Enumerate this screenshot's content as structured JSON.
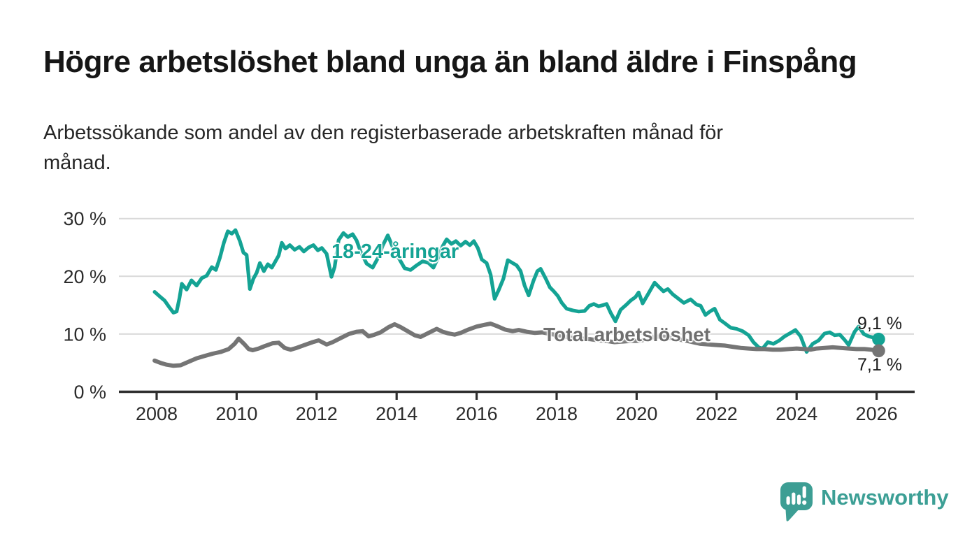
{
  "header": {
    "title": "Högre arbetslöshet bland unga än bland äldre i Finspång",
    "subtitle_line1": "Arbetssökande som andel av den registerbaserade arbetskraften månad för",
    "subtitle_line2": "månad."
  },
  "chart_data": {
    "type": "line",
    "title": "Högre arbetslöshet bland unga än bland äldre i Finspång",
    "xlabel": "",
    "ylabel": "",
    "x_axis": {
      "ticks": [
        2008,
        2010,
        2012,
        2014,
        2016,
        2018,
        2020,
        2022,
        2024,
        2026
      ],
      "tick_labels": [
        "2008",
        "2010",
        "2012",
        "2014",
        "2016",
        "2018",
        "2020",
        "2022",
        "2024",
        "2026"
      ],
      "range": [
        2007.1,
        2026.9
      ]
    },
    "y_axis": {
      "unit": "%",
      "ticks": [
        0,
        10,
        20,
        30
      ],
      "tick_labels": [
        "0 %",
        "10 %",
        "20 %",
        "30 %"
      ],
      "range": [
        0,
        30.5
      ],
      "grid": true
    },
    "style": {
      "grid_color": "#d9d9d9",
      "axis_color": "#2e2e2e",
      "tick_text_color": "#2b2b2b",
      "background": "#ffffff"
    },
    "series": [
      {
        "name": "18-24-åringar",
        "color": "#14a394",
        "stroke_width": 5.2,
        "end_value": 9.1,
        "end_label": "9,1 %",
        "points": [
          [
            2007.95,
            17.3
          ],
          [
            2008.08,
            16.5
          ],
          [
            2008.2,
            15.8
          ],
          [
            2008.3,
            14.8
          ],
          [
            2008.42,
            13.7
          ],
          [
            2008.5,
            13.9
          ],
          [
            2008.57,
            16.2
          ],
          [
            2008.63,
            18.7
          ],
          [
            2008.75,
            17.7
          ],
          [
            2008.87,
            19.3
          ],
          [
            2009.0,
            18.4
          ],
          [
            2009.13,
            19.7
          ],
          [
            2009.25,
            20.1
          ],
          [
            2009.38,
            21.6
          ],
          [
            2009.48,
            21.1
          ],
          [
            2009.58,
            23.2
          ],
          [
            2009.68,
            25.8
          ],
          [
            2009.78,
            27.8
          ],
          [
            2009.88,
            27.4
          ],
          [
            2009.97,
            28.0
          ],
          [
            2010.08,
            26.1
          ],
          [
            2010.17,
            24.1
          ],
          [
            2010.25,
            23.7
          ],
          [
            2010.33,
            17.8
          ],
          [
            2010.42,
            19.6
          ],
          [
            2010.5,
            20.6
          ],
          [
            2010.58,
            22.3
          ],
          [
            2010.68,
            20.9
          ],
          [
            2010.78,
            22.1
          ],
          [
            2010.88,
            21.5
          ],
          [
            2010.97,
            22.6
          ],
          [
            2011.05,
            23.6
          ],
          [
            2011.13,
            25.8
          ],
          [
            2011.22,
            24.8
          ],
          [
            2011.33,
            25.4
          ],
          [
            2011.45,
            24.6
          ],
          [
            2011.57,
            25.1
          ],
          [
            2011.68,
            24.3
          ],
          [
            2011.8,
            25.0
          ],
          [
            2011.92,
            25.4
          ],
          [
            2012.03,
            24.5
          ],
          [
            2012.13,
            24.9
          ],
          [
            2012.25,
            23.9
          ],
          [
            2012.37,
            19.9
          ],
          [
            2012.45,
            21.6
          ],
          [
            2012.55,
            26.3
          ],
          [
            2012.67,
            27.5
          ],
          [
            2012.78,
            26.8
          ],
          [
            2012.9,
            27.3
          ],
          [
            2013.0,
            26.2
          ],
          [
            2013.1,
            24.3
          ],
          [
            2013.25,
            22.2
          ],
          [
            2013.4,
            21.5
          ],
          [
            2013.55,
            23.4
          ],
          [
            2013.65,
            25.3
          ],
          [
            2013.78,
            27.1
          ],
          [
            2013.9,
            25.1
          ],
          [
            2014.05,
            23.2
          ],
          [
            2014.2,
            21.4
          ],
          [
            2014.35,
            21.1
          ],
          [
            2014.5,
            21.9
          ],
          [
            2014.65,
            22.6
          ],
          [
            2014.8,
            22.3
          ],
          [
            2014.92,
            21.5
          ],
          [
            2015.05,
            23.4
          ],
          [
            2015.15,
            25.2
          ],
          [
            2015.25,
            26.4
          ],
          [
            2015.37,
            25.6
          ],
          [
            2015.48,
            26.1
          ],
          [
            2015.6,
            25.3
          ],
          [
            2015.72,
            26.0
          ],
          [
            2015.83,
            25.4
          ],
          [
            2015.93,
            26.1
          ],
          [
            2016.03,
            24.9
          ],
          [
            2016.13,
            22.9
          ],
          [
            2016.25,
            22.3
          ],
          [
            2016.35,
            20.3
          ],
          [
            2016.45,
            16.1
          ],
          [
            2016.55,
            17.6
          ],
          [
            2016.67,
            19.6
          ],
          [
            2016.78,
            22.8
          ],
          [
            2016.9,
            22.3
          ],
          [
            2017.0,
            21.9
          ],
          [
            2017.1,
            20.9
          ],
          [
            2017.2,
            18.4
          ],
          [
            2017.3,
            16.7
          ],
          [
            2017.42,
            19.2
          ],
          [
            2017.52,
            20.9
          ],
          [
            2017.6,
            21.3
          ],
          [
            2017.72,
            19.7
          ],
          [
            2017.83,
            18.1
          ],
          [
            2017.93,
            17.4
          ],
          [
            2018.03,
            16.6
          ],
          [
            2018.13,
            15.4
          ],
          [
            2018.25,
            14.4
          ],
          [
            2018.4,
            14.1
          ],
          [
            2018.55,
            13.9
          ],
          [
            2018.7,
            14.0
          ],
          [
            2018.82,
            14.9
          ],
          [
            2018.93,
            15.2
          ],
          [
            2019.05,
            14.8
          ],
          [
            2019.15,
            15.0
          ],
          [
            2019.25,
            15.2
          ],
          [
            2019.35,
            13.7
          ],
          [
            2019.47,
            12.2
          ],
          [
            2019.6,
            14.2
          ],
          [
            2019.73,
            15.0
          ],
          [
            2019.85,
            15.8
          ],
          [
            2019.97,
            16.4
          ],
          [
            2020.05,
            17.2
          ],
          [
            2020.15,
            15.3
          ],
          [
            2020.3,
            17.1
          ],
          [
            2020.45,
            18.9
          ],
          [
            2020.55,
            18.2
          ],
          [
            2020.67,
            17.4
          ],
          [
            2020.78,
            17.8
          ],
          [
            2020.9,
            16.9
          ],
          [
            2021.03,
            16.2
          ],
          [
            2021.18,
            15.4
          ],
          [
            2021.35,
            16.0
          ],
          [
            2021.5,
            15.1
          ],
          [
            2021.6,
            14.9
          ],
          [
            2021.72,
            13.3
          ],
          [
            2021.83,
            13.9
          ],
          [
            2021.95,
            14.4
          ],
          [
            2022.08,
            12.5
          ],
          [
            2022.2,
            11.9
          ],
          [
            2022.35,
            11.1
          ],
          [
            2022.5,
            10.9
          ],
          [
            2022.65,
            10.5
          ],
          [
            2022.8,
            9.8
          ],
          [
            2022.92,
            8.6
          ],
          [
            2023.05,
            7.7
          ],
          [
            2023.15,
            7.5
          ],
          [
            2023.28,
            8.6
          ],
          [
            2023.42,
            8.3
          ],
          [
            2023.57,
            8.9
          ],
          [
            2023.7,
            9.6
          ],
          [
            2023.85,
            10.2
          ],
          [
            2023.97,
            10.7
          ],
          [
            2024.1,
            9.6
          ],
          [
            2024.25,
            6.9
          ],
          [
            2024.4,
            8.3
          ],
          [
            2024.55,
            8.9
          ],
          [
            2024.7,
            10.1
          ],
          [
            2024.83,
            10.3
          ],
          [
            2024.95,
            9.8
          ],
          [
            2025.08,
            9.9
          ],
          [
            2025.2,
            9.0
          ],
          [
            2025.3,
            8.1
          ],
          [
            2025.45,
            10.4
          ],
          [
            2025.55,
            11.3
          ],
          [
            2025.68,
            10.0
          ],
          [
            2025.8,
            9.6
          ],
          [
            2025.92,
            9.4
          ],
          [
            2026.05,
            9.1
          ]
        ]
      },
      {
        "name": "Total arbetslöshet",
        "color": "#757575",
        "stroke_width": 6,
        "end_value": 7.1,
        "end_label": "7,1 %",
        "points": [
          [
            2007.95,
            5.4
          ],
          [
            2008.1,
            5.0
          ],
          [
            2008.25,
            4.7
          ],
          [
            2008.42,
            4.5
          ],
          [
            2008.6,
            4.6
          ],
          [
            2008.8,
            5.2
          ],
          [
            2009.0,
            5.8
          ],
          [
            2009.2,
            6.2
          ],
          [
            2009.4,
            6.6
          ],
          [
            2009.6,
            6.9
          ],
          [
            2009.8,
            7.4
          ],
          [
            2009.95,
            8.3
          ],
          [
            2010.05,
            9.2
          ],
          [
            2010.2,
            8.2
          ],
          [
            2010.3,
            7.4
          ],
          [
            2010.4,
            7.2
          ],
          [
            2010.55,
            7.5
          ],
          [
            2010.7,
            7.9
          ],
          [
            2010.9,
            8.4
          ],
          [
            2011.05,
            8.5
          ],
          [
            2011.2,
            7.6
          ],
          [
            2011.35,
            7.3
          ],
          [
            2011.5,
            7.6
          ],
          [
            2011.7,
            8.1
          ],
          [
            2011.9,
            8.6
          ],
          [
            2012.05,
            8.9
          ],
          [
            2012.25,
            8.2
          ],
          [
            2012.4,
            8.6
          ],
          [
            2012.6,
            9.3
          ],
          [
            2012.8,
            10.0
          ],
          [
            2013.0,
            10.4
          ],
          [
            2013.15,
            10.5
          ],
          [
            2013.3,
            9.6
          ],
          [
            2013.45,
            9.9
          ],
          [
            2013.6,
            10.3
          ],
          [
            2013.8,
            11.2
          ],
          [
            2013.95,
            11.7
          ],
          [
            2014.1,
            11.2
          ],
          [
            2014.3,
            10.4
          ],
          [
            2014.45,
            9.8
          ],
          [
            2014.6,
            9.5
          ],
          [
            2014.8,
            10.2
          ],
          [
            2015.0,
            10.9
          ],
          [
            2015.15,
            10.4
          ],
          [
            2015.3,
            10.1
          ],
          [
            2015.45,
            9.9
          ],
          [
            2015.6,
            10.2
          ],
          [
            2015.8,
            10.8
          ],
          [
            2016.0,
            11.3
          ],
          [
            2016.2,
            11.6
          ],
          [
            2016.35,
            11.8
          ],
          [
            2016.5,
            11.4
          ],
          [
            2016.7,
            10.8
          ],
          [
            2016.9,
            10.5
          ],
          [
            2017.05,
            10.7
          ],
          [
            2017.25,
            10.4
          ],
          [
            2017.45,
            10.2
          ],
          [
            2017.65,
            10.3
          ],
          [
            2017.85,
            10.0
          ],
          [
            2018.05,
            9.8
          ],
          [
            2018.25,
            9.5
          ],
          [
            2018.45,
            9.3
          ],
          [
            2018.65,
            9.2
          ],
          [
            2018.85,
            9.1
          ],
          [
            2019.05,
            8.9
          ],
          [
            2019.25,
            8.8
          ],
          [
            2019.45,
            8.6
          ],
          [
            2019.65,
            8.7
          ],
          [
            2019.85,
            8.8
          ],
          [
            2020.05,
            8.8
          ],
          [
            2020.25,
            9.1
          ],
          [
            2020.45,
            9.5
          ],
          [
            2020.6,
            9.6
          ],
          [
            2020.8,
            9.4
          ],
          [
            2021.0,
            9.1
          ],
          [
            2021.2,
            8.9
          ],
          [
            2021.4,
            8.6
          ],
          [
            2021.6,
            8.3
          ],
          [
            2021.8,
            8.2
          ],
          [
            2022.0,
            8.1
          ],
          [
            2022.2,
            8.0
          ],
          [
            2022.4,
            7.8
          ],
          [
            2022.6,
            7.6
          ],
          [
            2022.8,
            7.5
          ],
          [
            2023.0,
            7.4
          ],
          [
            2023.2,
            7.4
          ],
          [
            2023.4,
            7.3
          ],
          [
            2023.6,
            7.3
          ],
          [
            2023.8,
            7.4
          ],
          [
            2024.0,
            7.5
          ],
          [
            2024.2,
            7.4
          ],
          [
            2024.35,
            7.3
          ],
          [
            2024.5,
            7.5
          ],
          [
            2024.7,
            7.6
          ],
          [
            2024.9,
            7.7
          ],
          [
            2025.1,
            7.6
          ],
          [
            2025.3,
            7.5
          ],
          [
            2025.5,
            7.4
          ],
          [
            2025.7,
            7.4
          ],
          [
            2025.85,
            7.3
          ],
          [
            2026.05,
            7.1
          ]
        ]
      }
    ],
    "legend_position": "inline-labels",
    "grid": "horizontal"
  },
  "footer": {
    "brand": "Newsworthy",
    "brand_color": "#3c9f95"
  }
}
